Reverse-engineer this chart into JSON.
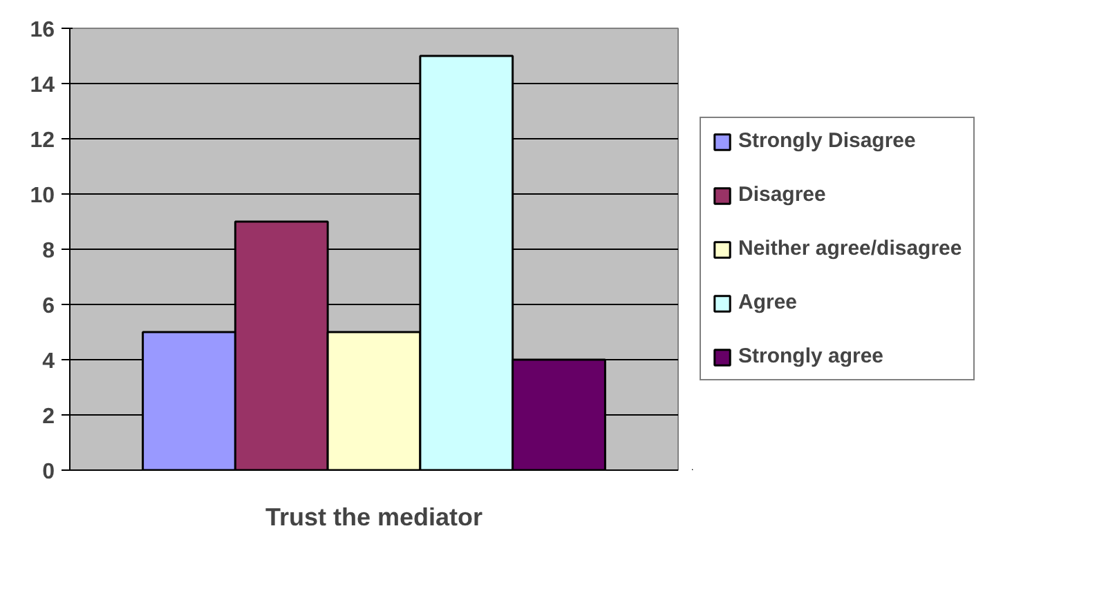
{
  "chart_data": {
    "type": "bar",
    "categories": [
      "Trust the mediator"
    ],
    "series": [
      {
        "name": "Strongly Disagree",
        "color": "#9999ff",
        "values": [
          5
        ]
      },
      {
        "name": "Disagree",
        "color": "#993366",
        "values": [
          9
        ]
      },
      {
        "name": "Neither agree/disagree",
        "color": "#ffffcc",
        "values": [
          5
        ]
      },
      {
        "name": "Agree",
        "color": "#ccffff",
        "values": [
          15
        ]
      },
      {
        "name": "Strongly agree",
        "color": "#660066",
        "values": [
          4
        ]
      }
    ],
    "ylim": [
      0,
      16
    ],
    "yticks": [
      0,
      2,
      4,
      6,
      8,
      10,
      12,
      14,
      16
    ],
    "grid": "y",
    "legend": "right"
  }
}
